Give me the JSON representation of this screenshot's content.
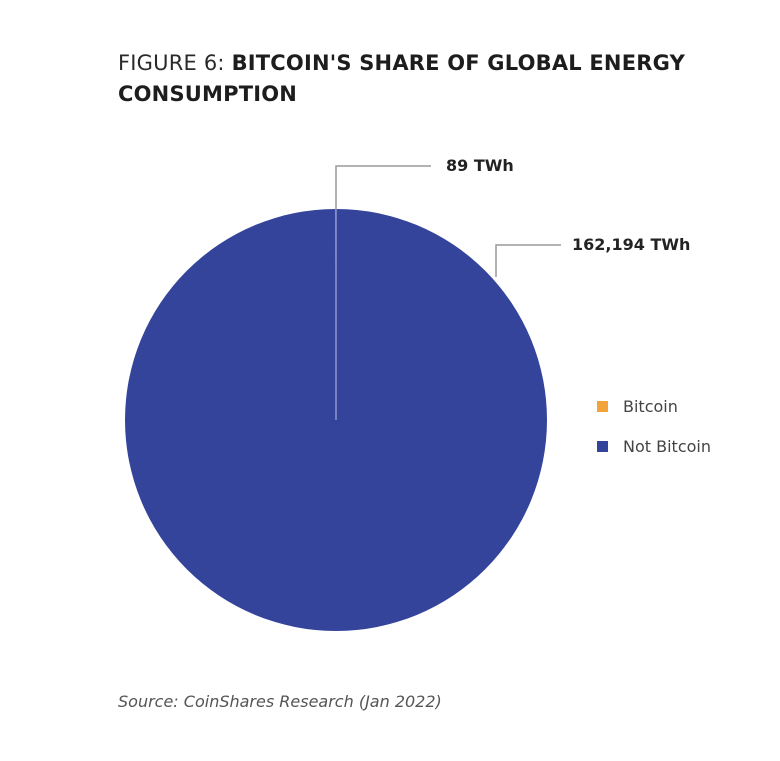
{
  "title": {
    "prefix": "FIGURE 6: ",
    "main": "BITCOIN'S SHARE OF GLOBAL ENERGY CONSUMPTION"
  },
  "colors": {
    "bitcoin": "#f2a33a",
    "not_bitcoin": "#35449b",
    "leader_line": "#9a9a9a"
  },
  "labels": {
    "bitcoin_value": "89 TWh",
    "not_bitcoin_value": "162,194 TWh"
  },
  "legend": {
    "items": [
      {
        "label": "Bitcoin",
        "color": "#f2a33a"
      },
      {
        "label": "Not Bitcoin",
        "color": "#35449b"
      }
    ]
  },
  "source": "Source: CoinShares Research (Jan 2022)",
  "chart_data": {
    "type": "pie",
    "title": "FIGURE 6: BITCOIN'S SHARE OF GLOBAL ENERGY CONSUMPTION",
    "categories": [
      "Bitcoin",
      "Not Bitcoin"
    ],
    "values": [
      89,
      162194
    ],
    "unit": "TWh",
    "data_labels": [
      "89 TWh",
      "162,194 TWh"
    ],
    "colors": [
      "#f2a33a",
      "#35449b"
    ],
    "legend_position": "right",
    "source": "Source: CoinShares Research (Jan 2022)"
  }
}
